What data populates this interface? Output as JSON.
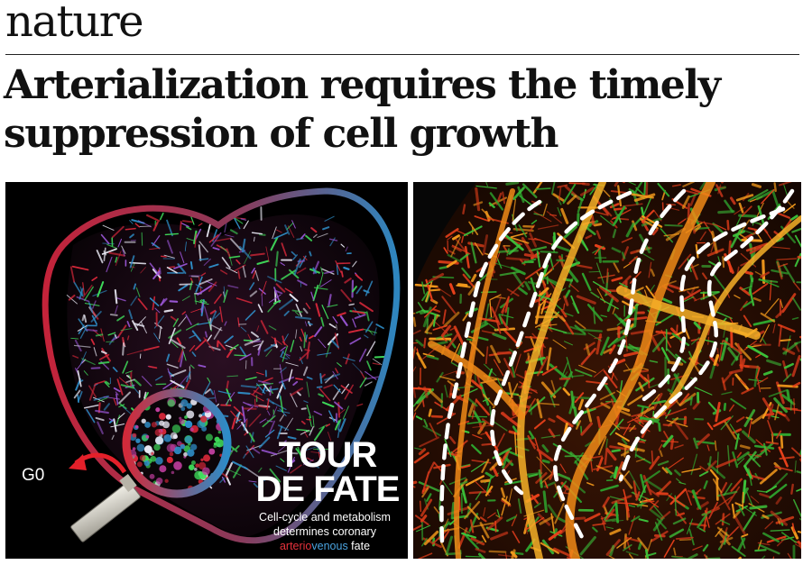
{
  "journal": {
    "name": "nature"
  },
  "article": {
    "title_line1": "Arterialization requires the timely",
    "title_line2": "suppression of cell growth"
  },
  "figure_left": {
    "poster_title_line1": "TOUR",
    "poster_title_line2": "DE FATE",
    "caption_line1": "Cell-cycle and metabolism",
    "caption_line2": "determines coronary",
    "caption_word_red": "arterio",
    "caption_word_blue": "venous",
    "caption_word_end": " fate",
    "exit_label": "G0",
    "colors": {
      "artery": "#d8283a",
      "vein": "#2f8fc9",
      "capillary": "#3fdc5a"
    }
  },
  "figure_right": {
    "colors": {
      "green_vessel": "#3cc23a",
      "orange_vessel": "#f49a1c",
      "red_vessel": "#e8401a",
      "dashed_outline": "#ffffff"
    }
  }
}
